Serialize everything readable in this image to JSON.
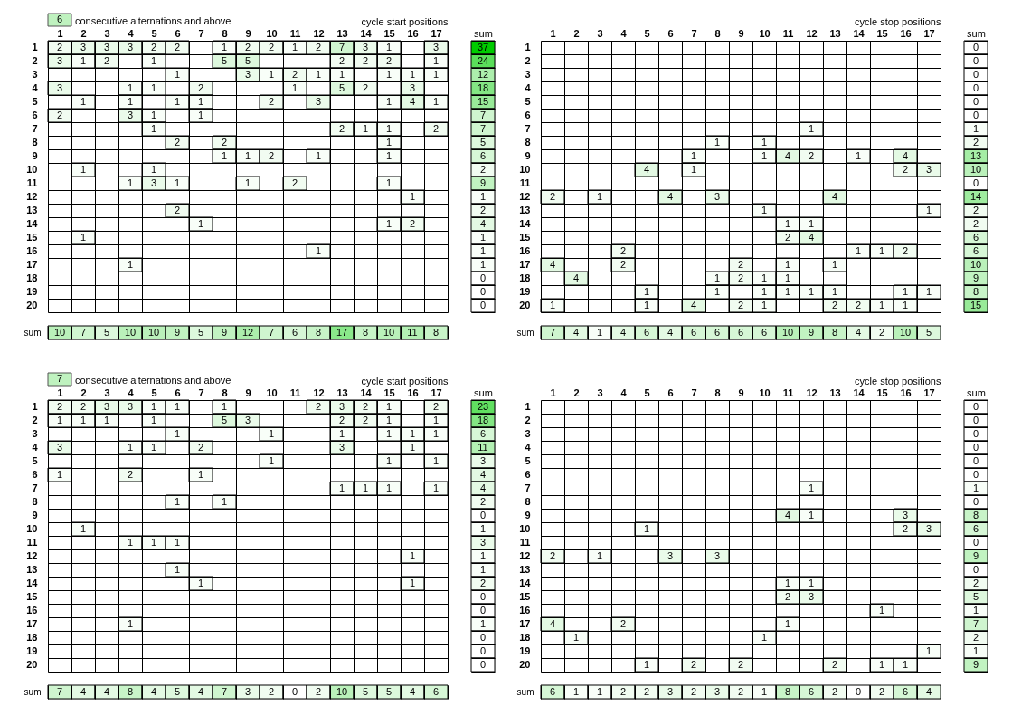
{
  "chart_data": [
    {
      "type": "heatmap",
      "title": "consecutive alternations and above",
      "xlabel": "cycle start positions",
      "annotations": [
        "6"
      ],
      "color": "#00cc00",
      "grid": true,
      "data_labels": true,
      "categories": [
        "1",
        "2",
        "3",
        "4",
        "5",
        "6",
        "7",
        "8",
        "9",
        "10",
        "11",
        "12",
        "13",
        "14",
        "15",
        "16",
        "17"
      ],
      "y_categories": [
        "1",
        "2",
        "3",
        "4",
        "5",
        "6",
        "7",
        "8",
        "9",
        "10",
        "11",
        "12",
        "13",
        "14",
        "15",
        "16",
        "17",
        "18",
        "19",
        "20"
      ],
      "cells": [
        [
          2,
          3,
          3,
          3,
          2,
          2,
          null,
          1,
          2,
          2,
          1,
          2,
          7,
          3,
          1,
          null,
          3
        ],
        [
          3,
          1,
          2,
          null,
          1,
          null,
          null,
          5,
          5,
          null,
          null,
          null,
          2,
          2,
          2,
          null,
          1
        ],
        [
          null,
          null,
          null,
          null,
          null,
          1,
          null,
          null,
          3,
          1,
          2,
          1,
          1,
          null,
          1,
          1,
          1
        ],
        [
          3,
          null,
          null,
          1,
          1,
          null,
          2,
          null,
          null,
          null,
          1,
          null,
          5,
          2,
          null,
          3,
          null
        ],
        [
          null,
          1,
          null,
          1,
          null,
          1,
          1,
          null,
          null,
          2,
          null,
          3,
          null,
          null,
          1,
          4,
          1
        ],
        [
          2,
          null,
          null,
          3,
          1,
          null,
          1,
          null,
          null,
          null,
          null,
          null,
          null,
          null,
          null,
          null,
          null
        ],
        [
          null,
          null,
          null,
          null,
          1,
          null,
          null,
          null,
          null,
          null,
          null,
          null,
          2,
          1,
          1,
          null,
          2
        ],
        [
          null,
          null,
          null,
          null,
          null,
          2,
          null,
          2,
          null,
          null,
          null,
          null,
          null,
          null,
          1,
          null,
          null
        ],
        [
          null,
          null,
          null,
          null,
          null,
          null,
          null,
          1,
          1,
          2,
          null,
          1,
          null,
          null,
          1,
          null,
          null
        ],
        [
          null,
          1,
          null,
          null,
          1,
          null,
          null,
          null,
          null,
          null,
          null,
          null,
          null,
          null,
          null,
          null,
          null
        ],
        [
          null,
          null,
          null,
          1,
          3,
          1,
          null,
          null,
          1,
          null,
          2,
          null,
          null,
          null,
          1,
          null,
          null
        ],
        [
          null,
          null,
          null,
          null,
          null,
          null,
          null,
          null,
          null,
          null,
          null,
          null,
          null,
          null,
          null,
          1,
          null
        ],
        [
          null,
          null,
          null,
          null,
          null,
          2,
          null,
          null,
          null,
          null,
          null,
          null,
          null,
          null,
          null,
          null,
          null
        ],
        [
          null,
          null,
          null,
          null,
          null,
          null,
          1,
          null,
          null,
          null,
          null,
          null,
          null,
          null,
          1,
          2,
          null
        ],
        [
          null,
          1,
          null,
          null,
          null,
          null,
          null,
          null,
          null,
          null,
          null,
          null,
          null,
          null,
          null,
          null,
          null
        ],
        [
          null,
          null,
          null,
          null,
          null,
          null,
          null,
          null,
          null,
          null,
          null,
          1,
          null,
          null,
          null,
          null,
          null
        ],
        [
          null,
          null,
          null,
          1,
          null,
          null,
          null,
          null,
          null,
          null,
          null,
          null,
          null,
          null,
          null,
          null,
          null
        ],
        [
          null,
          null,
          null,
          null,
          null,
          null,
          null,
          null,
          null,
          null,
          null,
          null,
          null,
          null,
          null,
          null,
          null
        ],
        [
          null,
          null,
          null,
          null,
          null,
          null,
          null,
          null,
          null,
          null,
          null,
          null,
          null,
          null,
          null,
          null,
          null
        ],
        [
          null,
          null,
          null,
          null,
          null,
          null,
          null,
          null,
          null,
          null,
          null,
          null,
          null,
          null,
          null,
          null,
          null
        ]
      ]
    },
    {
      "type": "heatmap",
      "color": "#00cc00",
      "grid": true,
      "data_labels": true,
      "tick_labels": "x",
      "categories": [
        "sum"
      ],
      "y_categories": [
        "1",
        "2",
        "3",
        "4",
        "5",
        "6",
        "7",
        "8",
        "9",
        "10",
        "11",
        "12",
        "13",
        "14",
        "15",
        "16",
        "17",
        "18",
        "19",
        "20"
      ],
      "cells": [
        [
          37
        ],
        [
          24
        ],
        [
          12
        ],
        [
          18
        ],
        [
          15
        ],
        [
          7
        ],
        [
          7
        ],
        [
          5
        ],
        [
          6
        ],
        [
          2
        ],
        [
          9
        ],
        [
          1
        ],
        [
          2
        ],
        [
          4
        ],
        [
          1
        ],
        [
          1
        ],
        [
          1
        ],
        [
          0
        ],
        [
          0
        ],
        [
          0
        ]
      ]
    },
    {
      "type": "heatmap",
      "color": "#00cc00",
      "grid": true,
      "data_labels": true,
      "tick_labels": "y",
      "categories": [
        "1",
        "2",
        "3",
        "4",
        "5",
        "6",
        "7",
        "8",
        "9",
        "10",
        "11",
        "12",
        "13",
        "14",
        "15",
        "16",
        "17"
      ],
      "y_categories": [
        "sum"
      ],
      "cells": [
        [
          10,
          7,
          5,
          10,
          10,
          9,
          5,
          9,
          12,
          7,
          6,
          8,
          17,
          8,
          10,
          11,
          8
        ]
      ]
    },
    {
      "type": "heatmap",
      "xlabel": "cycle stop positions",
      "color": "#ff0000",
      "grid": true,
      "data_labels": true,
      "categories": [
        "1",
        "2",
        "3",
        "4",
        "5",
        "6",
        "7",
        "8",
        "9",
        "10",
        "11",
        "12",
        "13",
        "14",
        "15",
        "16",
        "17"
      ],
      "y_categories": [
        "1",
        "2",
        "3",
        "4",
        "5",
        "6",
        "7",
        "8",
        "9",
        "10",
        "11",
        "12",
        "13",
        "14",
        "15",
        "16",
        "17",
        "18",
        "19",
        "20"
      ],
      "cells": [
        [
          null,
          null,
          null,
          null,
          null,
          null,
          null,
          null,
          null,
          null,
          null,
          null,
          null,
          null,
          null,
          null,
          null
        ],
        [
          null,
          null,
          null,
          null,
          null,
          null,
          null,
          null,
          null,
          null,
          null,
          null,
          null,
          null,
          null,
          null,
          null
        ],
        [
          null,
          null,
          null,
          null,
          null,
          null,
          null,
          null,
          null,
          null,
          null,
          null,
          null,
          null,
          null,
          null,
          null
        ],
        [
          null,
          null,
          null,
          null,
          null,
          null,
          null,
          null,
          null,
          null,
          null,
          null,
          null,
          null,
          null,
          null,
          null
        ],
        [
          null,
          null,
          null,
          null,
          null,
          null,
          null,
          null,
          null,
          null,
          null,
          null,
          null,
          null,
          null,
          null,
          null
        ],
        [
          null,
          null,
          null,
          null,
          null,
          null,
          null,
          null,
          null,
          null,
          null,
          null,
          null,
          null,
          null,
          null,
          null
        ],
        [
          null,
          null,
          null,
          null,
          null,
          null,
          null,
          null,
          null,
          null,
          null,
          1,
          null,
          null,
          null,
          null,
          null
        ],
        [
          null,
          null,
          null,
          null,
          null,
          null,
          null,
          1,
          null,
          1,
          null,
          null,
          null,
          null,
          null,
          null,
          null
        ],
        [
          null,
          null,
          null,
          null,
          null,
          null,
          1,
          null,
          null,
          1,
          4,
          2,
          null,
          1,
          null,
          4,
          null
        ],
        [
          null,
          null,
          null,
          null,
          4,
          null,
          1,
          null,
          null,
          null,
          null,
          null,
          null,
          null,
          null,
          2,
          3
        ],
        [
          null,
          null,
          null,
          null,
          null,
          null,
          null,
          null,
          null,
          null,
          null,
          null,
          null,
          null,
          null,
          null,
          null
        ],
        [
          2,
          null,
          1,
          null,
          null,
          4,
          null,
          3,
          null,
          null,
          null,
          null,
          4,
          null,
          null,
          null,
          null
        ],
        [
          null,
          null,
          null,
          null,
          null,
          null,
          null,
          null,
          null,
          1,
          null,
          null,
          null,
          null,
          null,
          null,
          1
        ],
        [
          null,
          null,
          null,
          null,
          null,
          null,
          null,
          null,
          null,
          null,
          1,
          1,
          null,
          null,
          null,
          null,
          null
        ],
        [
          null,
          null,
          null,
          null,
          null,
          null,
          null,
          null,
          null,
          null,
          2,
          4,
          null,
          null,
          null,
          null,
          null
        ],
        [
          null,
          null,
          null,
          2,
          null,
          null,
          null,
          null,
          null,
          null,
          null,
          null,
          null,
          1,
          1,
          2,
          null
        ],
        [
          4,
          null,
          null,
          2,
          null,
          null,
          null,
          null,
          2,
          null,
          1,
          null,
          1,
          null,
          null,
          null,
          null
        ],
        [
          null,
          4,
          null,
          null,
          null,
          null,
          null,
          1,
          2,
          1,
          1,
          null,
          null,
          null,
          null,
          null,
          null
        ],
        [
          null,
          null,
          null,
          null,
          1,
          null,
          null,
          1,
          null,
          1,
          1,
          1,
          1,
          null,
          null,
          1,
          1
        ],
        [
          1,
          null,
          null,
          null,
          1,
          null,
          4,
          null,
          2,
          1,
          null,
          null,
          2,
          2,
          1,
          1,
          null
        ]
      ]
    },
    {
      "type": "heatmap",
      "color": "#ff0066",
      "grid": true,
      "data_labels": true,
      "tick_labels": "x",
      "categories": [
        "sum"
      ],
      "y_categories": [
        "1",
        "2",
        "3",
        "4",
        "5",
        "6",
        "7",
        "8",
        "9",
        "10",
        "11",
        "12",
        "13",
        "14",
        "15",
        "16",
        "17",
        "18",
        "19",
        "20"
      ],
      "cells": [
        [
          0
        ],
        [
          0
        ],
        [
          0
        ],
        [
          0
        ],
        [
          0
        ],
        [
          0
        ],
        [
          1
        ],
        [
          2
        ],
        [
          13
        ],
        [
          10
        ],
        [
          0
        ],
        [
          14
        ],
        [
          2
        ],
        [
          2
        ],
        [
          6
        ],
        [
          6
        ],
        [
          10
        ],
        [
          9
        ],
        [
          8
        ],
        [
          15
        ]
      ]
    },
    {
      "type": "heatmap",
      "color": "#ff0066",
      "grid": true,
      "data_labels": true,
      "tick_labels": "y",
      "categories": [
        "1",
        "2",
        "3",
        "4",
        "5",
        "6",
        "7",
        "8",
        "9",
        "10",
        "11",
        "12",
        "13",
        "14",
        "15",
        "16",
        "17"
      ],
      "y_categories": [
        "sum"
      ],
      "cells": [
        [
          7,
          4,
          1,
          4,
          6,
          4,
          6,
          6,
          6,
          6,
          10,
          9,
          8,
          4,
          2,
          10,
          5
        ]
      ]
    },
    {
      "type": "heatmap",
      "title": "consecutive alternations and above",
      "xlabel": "cycle start positions",
      "annotations": [
        "7"
      ],
      "color": "#00cc00",
      "grid": true,
      "data_labels": true,
      "categories": [
        "1",
        "2",
        "3",
        "4",
        "5",
        "6",
        "7",
        "8",
        "9",
        "10",
        "11",
        "12",
        "13",
        "14",
        "15",
        "16",
        "17"
      ],
      "y_categories": [
        "1",
        "2",
        "3",
        "4",
        "5",
        "6",
        "7",
        "8",
        "9",
        "10",
        "11",
        "12",
        "13",
        "14",
        "15",
        "16",
        "17",
        "18",
        "19",
        "20"
      ],
      "cells": [
        [
          2,
          2,
          3,
          3,
          1,
          1,
          null,
          1,
          null,
          null,
          null,
          2,
          3,
          2,
          1,
          null,
          2
        ],
        [
          1,
          1,
          1,
          null,
          1,
          null,
          null,
          5,
          3,
          null,
          null,
          null,
          2,
          2,
          1,
          null,
          1
        ],
        [
          null,
          null,
          null,
          null,
          null,
          1,
          null,
          null,
          null,
          1,
          null,
          null,
          1,
          null,
          1,
          1,
          1
        ],
        [
          3,
          null,
          null,
          1,
          1,
          null,
          2,
          null,
          null,
          null,
          null,
          null,
          3,
          null,
          null,
          1,
          null
        ],
        [
          null,
          null,
          null,
          null,
          null,
          null,
          null,
          null,
          null,
          1,
          null,
          null,
          null,
          null,
          1,
          null,
          1
        ],
        [
          1,
          null,
          null,
          2,
          null,
          null,
          1,
          null,
          null,
          null,
          null,
          null,
          null,
          null,
          null,
          null,
          null
        ],
        [
          null,
          null,
          null,
          null,
          null,
          null,
          null,
          null,
          null,
          null,
          null,
          null,
          1,
          1,
          1,
          null,
          1
        ],
        [
          null,
          null,
          null,
          null,
          null,
          1,
          null,
          1,
          null,
          null,
          null,
          null,
          null,
          null,
          null,
          null,
          null
        ],
        [
          null,
          null,
          null,
          null,
          null,
          null,
          null,
          null,
          null,
          null,
          null,
          null,
          null,
          null,
          null,
          null,
          null
        ],
        [
          null,
          1,
          null,
          null,
          null,
          null,
          null,
          null,
          null,
          null,
          null,
          null,
          null,
          null,
          null,
          null,
          null
        ],
        [
          null,
          null,
          null,
          1,
          1,
          1,
          null,
          null,
          null,
          null,
          null,
          null,
          null,
          null,
          null,
          null,
          null
        ],
        [
          null,
          null,
          null,
          null,
          null,
          null,
          null,
          null,
          null,
          null,
          null,
          null,
          null,
          null,
          null,
          1,
          null
        ],
        [
          null,
          null,
          null,
          null,
          null,
          1,
          null,
          null,
          null,
          null,
          null,
          null,
          null,
          null,
          null,
          null,
          null
        ],
        [
          null,
          null,
          null,
          null,
          null,
          null,
          1,
          null,
          null,
          null,
          null,
          null,
          null,
          null,
          null,
          1,
          null
        ],
        [
          null,
          null,
          null,
          null,
          null,
          null,
          null,
          null,
          null,
          null,
          null,
          null,
          null,
          null,
          null,
          null,
          null
        ],
        [
          null,
          null,
          null,
          null,
          null,
          null,
          null,
          null,
          null,
          null,
          null,
          null,
          null,
          null,
          null,
          null,
          null
        ],
        [
          null,
          null,
          null,
          1,
          null,
          null,
          null,
          null,
          null,
          null,
          null,
          null,
          null,
          null,
          null,
          null,
          null
        ],
        [
          null,
          null,
          null,
          null,
          null,
          null,
          null,
          null,
          null,
          null,
          null,
          null,
          null,
          null,
          null,
          null,
          null
        ],
        [
          null,
          null,
          null,
          null,
          null,
          null,
          null,
          null,
          null,
          null,
          null,
          null,
          null,
          null,
          null,
          null,
          null
        ],
        [
          null,
          null,
          null,
          null,
          null,
          null,
          null,
          null,
          null,
          null,
          null,
          null,
          null,
          null,
          null,
          null,
          null
        ]
      ]
    },
    {
      "type": "heatmap",
      "color": "#00cc00",
      "grid": true,
      "data_labels": true,
      "tick_labels": "x",
      "categories": [
        "sum"
      ],
      "y_categories": [
        "1",
        "2",
        "3",
        "4",
        "5",
        "6",
        "7",
        "8",
        "9",
        "10",
        "11",
        "12",
        "13",
        "14",
        "15",
        "16",
        "17",
        "18",
        "19",
        "20"
      ],
      "cells": [
        [
          23
        ],
        [
          18
        ],
        [
          6
        ],
        [
          11
        ],
        [
          3
        ],
        [
          4
        ],
        [
          4
        ],
        [
          2
        ],
        [
          0
        ],
        [
          1
        ],
        [
          3
        ],
        [
          1
        ],
        [
          1
        ],
        [
          2
        ],
        [
          0
        ],
        [
          0
        ],
        [
          1
        ],
        [
          0
        ],
        [
          0
        ],
        [
          0
        ]
      ]
    },
    {
      "type": "heatmap",
      "color": "#00cc00",
      "grid": true,
      "data_labels": true,
      "tick_labels": "y",
      "categories": [
        "1",
        "2",
        "3",
        "4",
        "5",
        "6",
        "7",
        "8",
        "9",
        "10",
        "11",
        "12",
        "13",
        "14",
        "15",
        "16",
        "17"
      ],
      "y_categories": [
        "sum"
      ],
      "cells": [
        [
          7,
          4,
          4,
          8,
          4,
          5,
          4,
          7,
          3,
          2,
          0,
          2,
          10,
          5,
          5,
          4,
          6
        ]
      ]
    },
    {
      "type": "heatmap",
      "xlabel": "cycle stop positions",
      "color": "#ff0000",
      "grid": true,
      "data_labels": true,
      "categories": [
        "1",
        "2",
        "3",
        "4",
        "5",
        "6",
        "7",
        "8",
        "9",
        "10",
        "11",
        "12",
        "13",
        "14",
        "15",
        "16",
        "17"
      ],
      "y_categories": [
        "1",
        "2",
        "3",
        "4",
        "5",
        "6",
        "7",
        "8",
        "9",
        "10",
        "11",
        "12",
        "13",
        "14",
        "15",
        "16",
        "17",
        "18",
        "19",
        "20"
      ],
      "cells": [
        [
          null,
          null,
          null,
          null,
          null,
          null,
          null,
          null,
          null,
          null,
          null,
          null,
          null,
          null,
          null,
          null,
          null
        ],
        [
          null,
          null,
          null,
          null,
          null,
          null,
          null,
          null,
          null,
          null,
          null,
          null,
          null,
          null,
          null,
          null,
          null
        ],
        [
          null,
          null,
          null,
          null,
          null,
          null,
          null,
          null,
          null,
          null,
          null,
          null,
          null,
          null,
          null,
          null,
          null
        ],
        [
          null,
          null,
          null,
          null,
          null,
          null,
          null,
          null,
          null,
          null,
          null,
          null,
          null,
          null,
          null,
          null,
          null
        ],
        [
          null,
          null,
          null,
          null,
          null,
          null,
          null,
          null,
          null,
          null,
          null,
          null,
          null,
          null,
          null,
          null,
          null
        ],
        [
          null,
          null,
          null,
          null,
          null,
          null,
          null,
          null,
          null,
          null,
          null,
          null,
          null,
          null,
          null,
          null,
          null
        ],
        [
          null,
          null,
          null,
          null,
          null,
          null,
          null,
          null,
          null,
          null,
          null,
          1,
          null,
          null,
          null,
          null,
          null
        ],
        [
          null,
          null,
          null,
          null,
          null,
          null,
          null,
          null,
          null,
          null,
          null,
          null,
          null,
          null,
          null,
          null,
          null
        ],
        [
          null,
          null,
          null,
          null,
          null,
          null,
          null,
          null,
          null,
          null,
          4,
          1,
          null,
          null,
          null,
          3,
          null
        ],
        [
          null,
          null,
          null,
          null,
          1,
          null,
          null,
          null,
          null,
          null,
          null,
          null,
          null,
          null,
          null,
          2,
          3
        ],
        [
          null,
          null,
          null,
          null,
          null,
          null,
          null,
          null,
          null,
          null,
          null,
          null,
          null,
          null,
          null,
          null,
          null
        ],
        [
          2,
          null,
          1,
          null,
          null,
          3,
          null,
          3,
          null,
          null,
          null,
          null,
          null,
          null,
          null,
          null,
          null
        ],
        [
          null,
          null,
          null,
          null,
          null,
          null,
          null,
          null,
          null,
          null,
          null,
          null,
          null,
          null,
          null,
          null,
          null
        ],
        [
          null,
          null,
          null,
          null,
          null,
          null,
          null,
          null,
          null,
          null,
          1,
          1,
          null,
          null,
          null,
          null,
          null
        ],
        [
          null,
          null,
          null,
          null,
          null,
          null,
          null,
          null,
          null,
          null,
          2,
          3,
          null,
          null,
          null,
          null,
          null
        ],
        [
          null,
          null,
          null,
          null,
          null,
          null,
          null,
          null,
          null,
          null,
          null,
          null,
          null,
          null,
          1,
          null,
          null
        ],
        [
          4,
          null,
          null,
          2,
          null,
          null,
          null,
          null,
          null,
          null,
          1,
          null,
          null,
          null,
          null,
          null,
          null
        ],
        [
          null,
          1,
          null,
          null,
          null,
          null,
          null,
          null,
          null,
          1,
          null,
          null,
          null,
          null,
          null,
          null,
          null
        ],
        [
          null,
          null,
          null,
          null,
          null,
          null,
          null,
          null,
          null,
          null,
          null,
          null,
          null,
          null,
          null,
          null,
          1
        ],
        [
          null,
          null,
          null,
          null,
          1,
          null,
          2,
          null,
          2,
          null,
          null,
          null,
          2,
          null,
          1,
          1,
          null
        ]
      ]
    },
    {
      "type": "heatmap",
      "color": "#ff0066",
      "grid": true,
      "data_labels": true,
      "tick_labels": "x",
      "categories": [
        "sum"
      ],
      "y_categories": [
        "1",
        "2",
        "3",
        "4",
        "5",
        "6",
        "7",
        "8",
        "9",
        "10",
        "11",
        "12",
        "13",
        "14",
        "15",
        "16",
        "17",
        "18",
        "19",
        "20"
      ],
      "cells": [
        [
          0
        ],
        [
          0
        ],
        [
          0
        ],
        [
          0
        ],
        [
          0
        ],
        [
          0
        ],
        [
          1
        ],
        [
          0
        ],
        [
          8
        ],
        [
          6
        ],
        [
          0
        ],
        [
          9
        ],
        [
          0
        ],
        [
          2
        ],
        [
          5
        ],
        [
          1
        ],
        [
          7
        ],
        [
          2
        ],
        [
          1
        ],
        [
          9
        ]
      ]
    },
    {
      "type": "heatmap",
      "color": "#ff0066",
      "grid": true,
      "data_labels": true,
      "tick_labels": "y",
      "categories": [
        "1",
        "2",
        "3",
        "4",
        "5",
        "6",
        "7",
        "8",
        "9",
        "10",
        "11",
        "12",
        "13",
        "14",
        "15",
        "16",
        "17"
      ],
      "y_categories": [
        "sum"
      ],
      "cells": [
        [
          6,
          1,
          1,
          2,
          2,
          3,
          2,
          3,
          2,
          1,
          8,
          6,
          2,
          0,
          2,
          6,
          4
        ]
      ]
    }
  ]
}
